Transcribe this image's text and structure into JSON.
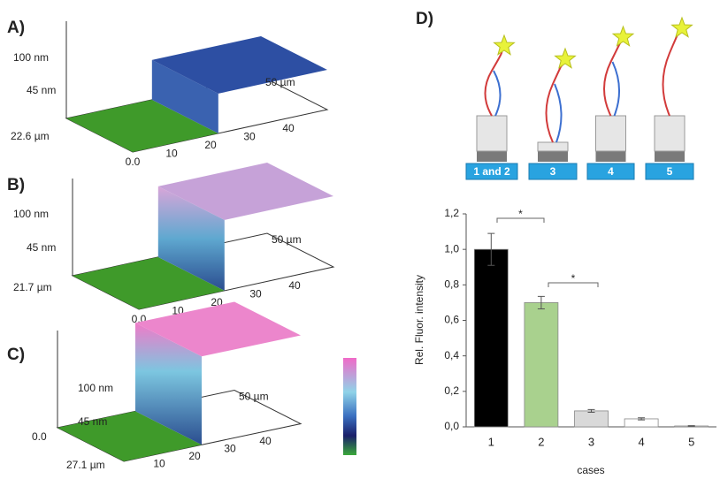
{
  "panels_3d": [
    {
      "label": "A)",
      "z_ticks": [
        "100 nm",
        "45 nm"
      ],
      "depth_label": "22.6 µm",
      "x_ticks": [
        "0.0",
        "10",
        "20",
        "30",
        "40"
      ],
      "x_end": "50 µm"
    },
    {
      "label": "B)",
      "z_ticks": [
        "100 nm",
        "45 nm"
      ],
      "depth_label": "21.7 µm",
      "x_ticks": [
        "0.0",
        "10",
        "20",
        "30",
        "40"
      ],
      "x_end": "50 µm"
    },
    {
      "label": "C)",
      "z_ticks": [
        "100 nm",
        "45 nm"
      ],
      "depth_label": "27.1 µm",
      "depth_start": "0.0",
      "x_ticks": [
        "10",
        "20",
        "30",
        "40"
      ],
      "x_end": "50 µm"
    }
  ],
  "schematic": {
    "label": "D)",
    "boxes": [
      "1 and 2",
      "3",
      "4",
      "5"
    ]
  },
  "chart_data": {
    "type": "bar",
    "categories": [
      "1",
      "2",
      "3",
      "4",
      "5"
    ],
    "values": [
      1.0,
      0.7,
      0.09,
      0.045,
      0.005
    ],
    "errors": [
      0.09,
      0.035,
      0.008,
      0.006,
      0.002
    ],
    "colors": [
      "#000000",
      "#a9d18e",
      "#d9d9d9",
      "#ffffff",
      "#ffffff"
    ],
    "ylabel": "Rel. Fluor. intensity",
    "xlabel": "cases",
    "ylim": [
      0,
      1.2
    ],
    "yticks": [
      {
        "value": 0,
        "label": "0,0"
      },
      {
        "value": 0.2,
        "label": "0,2"
      },
      {
        "value": 0.4,
        "label": "0,4"
      },
      {
        "value": 0.6,
        "label": "0,6"
      },
      {
        "value": 0.8,
        "label": "0,8"
      },
      {
        "value": 1.0,
        "label": "1,0"
      },
      {
        "value": 1.2,
        "label": "1,2"
      }
    ],
    "annotations": [
      "*",
      "*"
    ]
  }
}
